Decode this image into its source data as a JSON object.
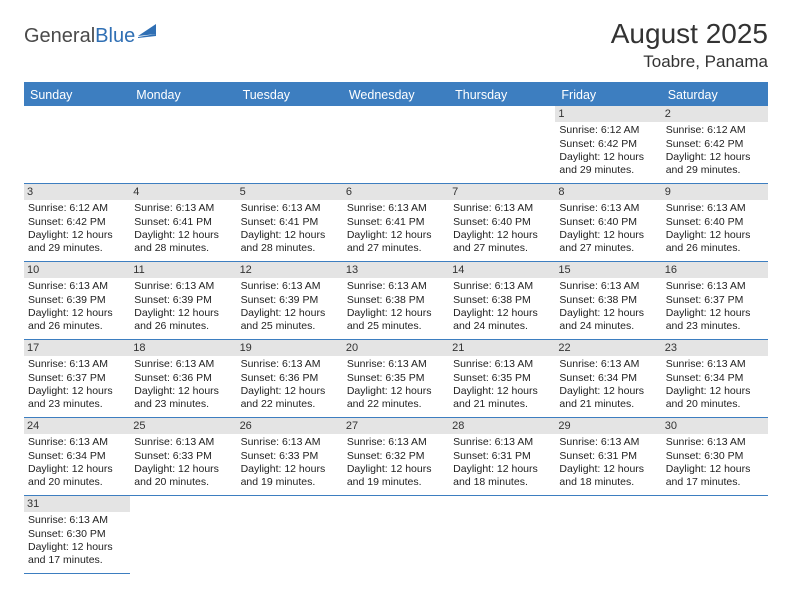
{
  "logo": {
    "part1": "General",
    "part2": "Blue"
  },
  "title": "August 2025",
  "location": "Toabre, Panama",
  "weekdays": [
    "Sunday",
    "Monday",
    "Tuesday",
    "Wednesday",
    "Thursday",
    "Friday",
    "Saturday"
  ],
  "colors": {
    "header_bg": "#3d7ec0",
    "header_text": "#ffffff",
    "border": "#3d7ec0",
    "daynum_bg": "#e4e4e4",
    "logo_blue": "#2f6fb4"
  },
  "firstDayOffset": 5,
  "daysInMonth": 31,
  "days": {
    "1": {
      "sunrise": "6:12 AM",
      "sunset": "6:42 PM",
      "daylight": "12 hours and 29 minutes."
    },
    "2": {
      "sunrise": "6:12 AM",
      "sunset": "6:42 PM",
      "daylight": "12 hours and 29 minutes."
    },
    "3": {
      "sunrise": "6:12 AM",
      "sunset": "6:42 PM",
      "daylight": "12 hours and 29 minutes."
    },
    "4": {
      "sunrise": "6:13 AM",
      "sunset": "6:41 PM",
      "daylight": "12 hours and 28 minutes."
    },
    "5": {
      "sunrise": "6:13 AM",
      "sunset": "6:41 PM",
      "daylight": "12 hours and 28 minutes."
    },
    "6": {
      "sunrise": "6:13 AM",
      "sunset": "6:41 PM",
      "daylight": "12 hours and 27 minutes."
    },
    "7": {
      "sunrise": "6:13 AM",
      "sunset": "6:40 PM",
      "daylight": "12 hours and 27 minutes."
    },
    "8": {
      "sunrise": "6:13 AM",
      "sunset": "6:40 PM",
      "daylight": "12 hours and 27 minutes."
    },
    "9": {
      "sunrise": "6:13 AM",
      "sunset": "6:40 PM",
      "daylight": "12 hours and 26 minutes."
    },
    "10": {
      "sunrise": "6:13 AM",
      "sunset": "6:39 PM",
      "daylight": "12 hours and 26 minutes."
    },
    "11": {
      "sunrise": "6:13 AM",
      "sunset": "6:39 PM",
      "daylight": "12 hours and 26 minutes."
    },
    "12": {
      "sunrise": "6:13 AM",
      "sunset": "6:39 PM",
      "daylight": "12 hours and 25 minutes."
    },
    "13": {
      "sunrise": "6:13 AM",
      "sunset": "6:38 PM",
      "daylight": "12 hours and 25 minutes."
    },
    "14": {
      "sunrise": "6:13 AM",
      "sunset": "6:38 PM",
      "daylight": "12 hours and 24 minutes."
    },
    "15": {
      "sunrise": "6:13 AM",
      "sunset": "6:38 PM",
      "daylight": "12 hours and 24 minutes."
    },
    "16": {
      "sunrise": "6:13 AM",
      "sunset": "6:37 PM",
      "daylight": "12 hours and 23 minutes."
    },
    "17": {
      "sunrise": "6:13 AM",
      "sunset": "6:37 PM",
      "daylight": "12 hours and 23 minutes."
    },
    "18": {
      "sunrise": "6:13 AM",
      "sunset": "6:36 PM",
      "daylight": "12 hours and 23 minutes."
    },
    "19": {
      "sunrise": "6:13 AM",
      "sunset": "6:36 PM",
      "daylight": "12 hours and 22 minutes."
    },
    "20": {
      "sunrise": "6:13 AM",
      "sunset": "6:35 PM",
      "daylight": "12 hours and 22 minutes."
    },
    "21": {
      "sunrise": "6:13 AM",
      "sunset": "6:35 PM",
      "daylight": "12 hours and 21 minutes."
    },
    "22": {
      "sunrise": "6:13 AM",
      "sunset": "6:34 PM",
      "daylight": "12 hours and 21 minutes."
    },
    "23": {
      "sunrise": "6:13 AM",
      "sunset": "6:34 PM",
      "daylight": "12 hours and 20 minutes."
    },
    "24": {
      "sunrise": "6:13 AM",
      "sunset": "6:34 PM",
      "daylight": "12 hours and 20 minutes."
    },
    "25": {
      "sunrise": "6:13 AM",
      "sunset": "6:33 PM",
      "daylight": "12 hours and 20 minutes."
    },
    "26": {
      "sunrise": "6:13 AM",
      "sunset": "6:33 PM",
      "daylight": "12 hours and 19 minutes."
    },
    "27": {
      "sunrise": "6:13 AM",
      "sunset": "6:32 PM",
      "daylight": "12 hours and 19 minutes."
    },
    "28": {
      "sunrise": "6:13 AM",
      "sunset": "6:31 PM",
      "daylight": "12 hours and 18 minutes."
    },
    "29": {
      "sunrise": "6:13 AM",
      "sunset": "6:31 PM",
      "daylight": "12 hours and 18 minutes."
    },
    "30": {
      "sunrise": "6:13 AM",
      "sunset": "6:30 PM",
      "daylight": "12 hours and 17 minutes."
    },
    "31": {
      "sunrise": "6:13 AM",
      "sunset": "6:30 PM",
      "daylight": "12 hours and 17 minutes."
    }
  },
  "labels": {
    "sunrise_prefix": "Sunrise: ",
    "sunset_prefix": "Sunset: ",
    "daylight_prefix": "Daylight: "
  }
}
